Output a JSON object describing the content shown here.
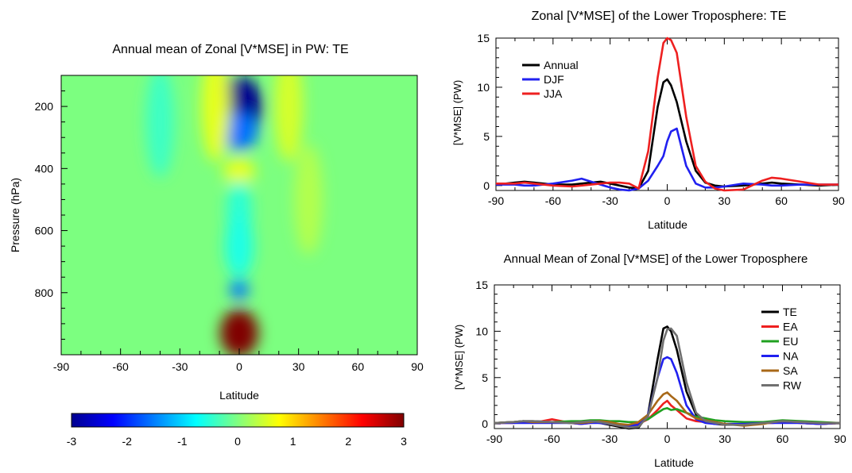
{
  "chart_data": [
    {
      "type": "heatmap",
      "title": "Annual mean of Zonal [V*MSE] in PW: TE",
      "xlabel": "Latitude",
      "ylabel": "Pressure (hPa)",
      "xlim": [
        -90,
        90
      ],
      "ylim": [
        1000,
        100
      ],
      "xticks": [
        -90,
        -60,
        -30,
        0,
        30,
        60,
        90
      ],
      "yticks": [
        200,
        400,
        600,
        800
      ],
      "colorbar": {
        "range": [
          -3,
          3
        ],
        "ticks": [
          -3,
          -2,
          -1,
          0,
          1,
          2,
          3
        ],
        "colors": [
          "#00008f",
          "#0000ff",
          "#0080ff",
          "#00ffff",
          "#80ff80",
          "#ffff00",
          "#ff8000",
          "#ff0000",
          "#800000"
        ]
      },
      "background_value": 0,
      "features": [
        {
          "lat": 0,
          "pressure": 200,
          "value": -3.0
        },
        {
          "lat": 0,
          "pressure": 280,
          "value": -1.6
        },
        {
          "lat": 0,
          "pressure": 410,
          "value": 0.6
        },
        {
          "lat": 0,
          "pressure": 540,
          "value": -0.5
        },
        {
          "lat": 0,
          "pressure": 650,
          "value": -0.6
        },
        {
          "lat": 0,
          "pressure": 790,
          "value": -1.6
        },
        {
          "lat": 0,
          "pressure": 930,
          "value": 3.0
        },
        {
          "lat": -12,
          "pressure": 200,
          "value": 0.6
        },
        {
          "lat": 25,
          "pressure": 200,
          "value": 0.5
        },
        {
          "lat": -40,
          "pressure": 250,
          "value": -0.4
        },
        {
          "lat": 35,
          "pressure": 500,
          "value": 0.3
        }
      ]
    },
    {
      "type": "line",
      "title": "Zonal [V*MSE] of the Lower Troposphere: TE",
      "xlabel": "Latitude",
      "ylabel": "[V*MSE] (PW)",
      "xlim": [
        -90,
        90
      ],
      "ylim": [
        -0.5,
        15
      ],
      "xticks": [
        -90,
        -60,
        -30,
        0,
        30,
        60,
        90
      ],
      "yticks": [
        0,
        5,
        10,
        15
      ],
      "legend_position": "top-left",
      "x": [
        -90,
        -80,
        -75,
        -70,
        -60,
        -50,
        -45,
        -40,
        -35,
        -30,
        -25,
        -20,
        -15,
        -10,
        -5,
        -2,
        0,
        2,
        5,
        10,
        15,
        20,
        25,
        30,
        40,
        50,
        55,
        60,
        70,
        80,
        90
      ],
      "series": [
        {
          "name": "Annual",
          "color": "#000000",
          "values": [
            0.1,
            0.3,
            0.4,
            0.3,
            0.1,
            0.1,
            0.2,
            0.3,
            0.4,
            0.2,
            0.0,
            -0.2,
            -0.3,
            1.5,
            8.0,
            10.5,
            10.8,
            10.2,
            8.5,
            4.5,
            1.5,
            0.3,
            0.0,
            -0.1,
            0.0,
            0.2,
            0.3,
            0.2,
            0.1,
            0.0,
            0.1
          ]
        },
        {
          "name": "DJF",
          "color": "#2020f0",
          "values": [
            0.1,
            0.1,
            0.0,
            0.0,
            0.2,
            0.5,
            0.7,
            0.4,
            0.1,
            -0.2,
            -0.4,
            -0.5,
            -0.3,
            0.5,
            2.0,
            3.0,
            4.5,
            5.5,
            5.8,
            2.0,
            0.2,
            -0.2,
            -0.2,
            -0.1,
            0.2,
            0.1,
            0.0,
            0.0,
            0.1,
            0.1,
            0.1
          ]
        },
        {
          "name": "JJA",
          "color": "#ee2020",
          "values": [
            0.2,
            0.2,
            0.3,
            0.2,
            0.0,
            -0.1,
            0.0,
            0.1,
            0.2,
            0.3,
            0.3,
            0.2,
            -0.3,
            3.5,
            11.0,
            14.5,
            15.0,
            14.8,
            13.5,
            7.0,
            2.0,
            0.4,
            -0.3,
            -0.5,
            -0.4,
            0.5,
            0.8,
            0.7,
            0.4,
            0.1,
            0.1
          ]
        }
      ]
    },
    {
      "type": "line",
      "title": "Annual Mean of Zonal [V*MSE] of the Lower Troposphere",
      "xlabel": "Latitude",
      "ylabel": "[V*MSE] (PW)",
      "xlim": [
        -90,
        90
      ],
      "ylim": [
        -0.5,
        15
      ],
      "xticks": [
        -90,
        -60,
        -30,
        0,
        30,
        60,
        90
      ],
      "yticks": [
        0,
        5,
        10,
        15
      ],
      "legend_position": "top-right",
      "x": [
        -90,
        -80,
        -75,
        -70,
        -60,
        -50,
        -45,
        -40,
        -35,
        -30,
        -25,
        -20,
        -15,
        -10,
        -5,
        -2,
        0,
        2,
        5,
        10,
        15,
        20,
        25,
        30,
        40,
        50,
        55,
        60,
        70,
        80,
        90
      ],
      "series": [
        {
          "name": "TE",
          "color": "#000000",
          "values": [
            0.1,
            0.2,
            0.3,
            0.3,
            0.2,
            0.1,
            0.2,
            0.2,
            0.1,
            -0.1,
            -0.3,
            -0.5,
            -0.4,
            1.0,
            7.0,
            10.3,
            10.5,
            10.0,
            8.0,
            3.5,
            1.0,
            0.2,
            0.0,
            -0.1,
            0.0,
            0.1,
            0.2,
            0.2,
            0.1,
            0.0,
            0.1
          ]
        },
        {
          "name": "EA",
          "color": "#ee2020",
          "values": [
            0.1,
            0.1,
            0.2,
            0.1,
            0.5,
            0.1,
            0.0,
            0.1,
            0.2,
            0.0,
            -0.2,
            -0.3,
            0.0,
            0.5,
            1.5,
            2.2,
            2.5,
            2.0,
            1.5,
            0.6,
            0.3,
            0.2,
            0.1,
            -0.1,
            0.0,
            0.1,
            0.1,
            0.2,
            0.1,
            0.0,
            0.1
          ]
        },
        {
          "name": "EU",
          "color": "#20a020",
          "values": [
            0.1,
            0.2,
            0.3,
            0.2,
            0.2,
            0.3,
            0.3,
            0.4,
            0.4,
            0.3,
            0.3,
            0.2,
            0.2,
            0.5,
            1.2,
            1.6,
            1.7,
            1.5,
            1.6,
            1.2,
            0.8,
            0.6,
            0.4,
            0.3,
            0.2,
            0.2,
            0.3,
            0.4,
            0.3,
            0.2,
            0.1
          ]
        },
        {
          "name": "NA",
          "color": "#2020f0",
          "values": [
            0.1,
            0.1,
            0.1,
            0.1,
            0.1,
            0.1,
            0.0,
            0.1,
            0.1,
            0.0,
            -0.1,
            -0.2,
            -0.1,
            1.0,
            5.0,
            7.0,
            7.2,
            7.0,
            5.5,
            2.0,
            0.5,
            0.1,
            0.0,
            0.0,
            0.0,
            0.1,
            0.1,
            0.1,
            0.1,
            0.0,
            0.1
          ]
        },
        {
          "name": "SA",
          "color": "#a86818",
          "values": [
            0.1,
            0.2,
            0.3,
            0.2,
            0.2,
            0.1,
            0.1,
            0.2,
            0.3,
            0.2,
            0.0,
            -0.1,
            0.2,
            1.0,
            2.5,
            3.2,
            3.4,
            3.0,
            2.5,
            1.2,
            0.6,
            0.4,
            0.2,
            0.0,
            -0.2,
            0.0,
            0.2,
            0.3,
            0.2,
            0.1,
            0.1
          ]
        },
        {
          "name": "RW",
          "color": "#707070",
          "values": [
            0.1,
            0.2,
            0.3,
            0.3,
            0.2,
            0.1,
            0.2,
            0.3,
            0.2,
            0.0,
            -0.2,
            -0.4,
            -0.3,
            0.8,
            5.0,
            9.0,
            10.2,
            10.3,
            9.5,
            4.5,
            1.2,
            0.3,
            0.1,
            -0.1,
            -0.1,
            0.1,
            0.2,
            0.3,
            0.2,
            0.1,
            0.1
          ]
        }
      ]
    }
  ]
}
